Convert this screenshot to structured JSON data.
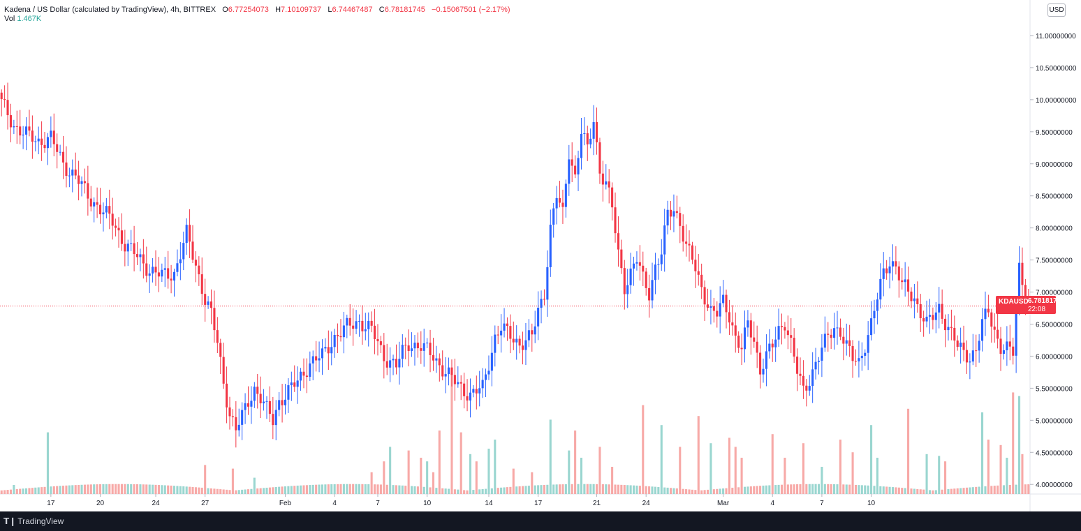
{
  "legend": {
    "title": "Kadena / US Dollar (calculated by TradingView), 4h, BITTREX",
    "o_label": "O",
    "o_value": "6.77254073",
    "h_label": "H",
    "h_value": "7.10109737",
    "l_label": "L",
    "l_value": "6.74467487",
    "c_label": "C",
    "c_value": "6.78181745",
    "change": "−0.15067501 (−2.17%)",
    "vol_label": "Vol",
    "vol_value": "1.467K"
  },
  "currency_button": "USD",
  "last_price": {
    "symbol": "KDAUSD",
    "price": "6.78181745",
    "countdown": "22:08"
  },
  "footer": {
    "brand": "TradingView",
    "logo_icon": "tradingview-logo-icon"
  },
  "colors": {
    "up": "#2962ff",
    "down": "#f23645",
    "vol_up": "#9ad6d0",
    "vol_down": "#f7a9a7",
    "grid": "#e0e3eb",
    "last_price": "#f23645"
  },
  "chart_data": {
    "type": "candlestick",
    "symbol": "KDAUSD",
    "timeframe": "4h",
    "ylim": [
      3.85,
      11.25
    ],
    "yticks": [
      "11.00000000",
      "10.50000000",
      "10.00000000",
      "9.50000000",
      "9.00000000",
      "8.50000000",
      "8.00000000",
      "7.50000000",
      "7.00000000",
      "6.50000000",
      "6.00000000",
      "5.50000000",
      "5.00000000",
      "4.50000000",
      "4.00000000"
    ],
    "ytick_values": [
      11.0,
      10.5,
      10.0,
      9.5,
      9.0,
      8.5,
      8.0,
      7.5,
      7.0,
      6.5,
      6.0,
      5.5,
      5.0,
      4.5,
      4.0
    ],
    "xticks": [
      "17",
      "20",
      "24",
      "27",
      "Feb",
      "4",
      "7",
      "10",
      "14",
      "17",
      "21",
      "24",
      "Mar",
      "4",
      "7",
      "10"
    ],
    "xtick_index": [
      16,
      32,
      50,
      66,
      92,
      108,
      122,
      138,
      158,
      174,
      193,
      209,
      234,
      250,
      266,
      282
    ],
    "last_price": 6.78181745,
    "close_path": [
      [
        0,
        9.95
      ],
      [
        4,
        9.6
      ],
      [
        8,
        9.45
      ],
      [
        12,
        9.35
      ],
      [
        16,
        9.4
      ],
      [
        20,
        9.0
      ],
      [
        24,
        8.8
      ],
      [
        28,
        8.5
      ],
      [
        32,
        8.3
      ],
      [
        36,
        8.1
      ],
      [
        40,
        7.75
      ],
      [
        44,
        7.55
      ],
      [
        48,
        7.35
      ],
      [
        52,
        7.25
      ],
      [
        56,
        7.3
      ],
      [
        60,
        7.9
      ],
      [
        64,
        7.25
      ],
      [
        66,
        6.9
      ],
      [
        68,
        6.65
      ],
      [
        70,
        6.2
      ],
      [
        72,
        5.6
      ],
      [
        74,
        5.1
      ],
      [
        76,
        4.85
      ],
      [
        78,
        5.05
      ],
      [
        80,
        5.3
      ],
      [
        82,
        5.5
      ],
      [
        84,
        5.35
      ],
      [
        86,
        5.15
      ],
      [
        88,
        5.0
      ],
      [
        90,
        5.3
      ],
      [
        92,
        5.4
      ],
      [
        94,
        5.5
      ],
      [
        96,
        5.6
      ],
      [
        98,
        5.75
      ],
      [
        100,
        5.9
      ],
      [
        104,
        6.0
      ],
      [
        108,
        6.3
      ],
      [
        112,
        6.45
      ],
      [
        116,
        6.55
      ],
      [
        120,
        6.4
      ],
      [
        124,
        6.0
      ],
      [
        128,
        5.85
      ],
      [
        130,
        6.05
      ],
      [
        132,
        6.2
      ],
      [
        136,
        6.15
      ],
      [
        140,
        6.0
      ],
      [
        144,
        5.75
      ],
      [
        148,
        5.55
      ],
      [
        152,
        5.4
      ],
      [
        156,
        5.5
      ],
      [
        158,
        5.9
      ],
      [
        160,
        6.3
      ],
      [
        162,
        6.45
      ],
      [
        164,
        6.35
      ],
      [
        168,
        6.2
      ],
      [
        172,
        6.3
      ],
      [
        174,
        6.7
      ],
      [
        176,
        7.0
      ],
      [
        177,
        7.5
      ],
      [
        178,
        8.0
      ],
      [
        180,
        8.5
      ],
      [
        182,
        8.2
      ],
      [
        184,
        9.2
      ],
      [
        186,
        8.8
      ],
      [
        188,
        9.5
      ],
      [
        190,
        9.2
      ],
      [
        192,
        9.7
      ],
      [
        194,
        8.9
      ],
      [
        196,
        8.7
      ],
      [
        198,
        8.3
      ],
      [
        200,
        7.6
      ],
      [
        202,
        7.1
      ],
      [
        204,
        7.3
      ],
      [
        206,
        7.5
      ],
      [
        208,
        7.2
      ],
      [
        210,
        7.0
      ],
      [
        212,
        7.4
      ],
      [
        214,
        7.6
      ],
      [
        216,
        8.2
      ],
      [
        218,
        8.3
      ],
      [
        220,
        8.1
      ],
      [
        222,
        7.7
      ],
      [
        224,
        7.5
      ],
      [
        226,
        7.2
      ],
      [
        228,
        6.95
      ],
      [
        230,
        6.7
      ],
      [
        232,
        6.65
      ],
      [
        234,
        6.85
      ],
      [
        236,
        6.65
      ],
      [
        238,
        6.3
      ],
      [
        240,
        6.1
      ],
      [
        242,
        6.5
      ],
      [
        244,
        6.25
      ],
      [
        246,
        5.8
      ],
      [
        248,
        6.0
      ],
      [
        250,
        6.15
      ],
      [
        252,
        6.4
      ],
      [
        254,
        6.55
      ],
      [
        256,
        6.2
      ],
      [
        258,
        5.75
      ],
      [
        260,
        5.45
      ],
      [
        262,
        5.65
      ],
      [
        264,
        5.9
      ],
      [
        266,
        6.1
      ],
      [
        268,
        6.3
      ],
      [
        270,
        6.45
      ],
      [
        272,
        6.4
      ],
      [
        274,
        6.15
      ],
      [
        276,
        5.95
      ],
      [
        278,
        5.9
      ],
      [
        280,
        6.2
      ],
      [
        282,
        6.5
      ],
      [
        284,
        6.9
      ],
      [
        286,
        7.3
      ],
      [
        288,
        7.5
      ],
      [
        290,
        7.4
      ],
      [
        292,
        7.1
      ],
      [
        294,
        7.0
      ],
      [
        296,
        6.9
      ],
      [
        298,
        6.7
      ],
      [
        300,
        6.5
      ],
      [
        302,
        6.6
      ],
      [
        304,
        6.75
      ],
      [
        306,
        6.55
      ],
      [
        308,
        6.35
      ],
      [
        310,
        6.15
      ],
      [
        312,
        6.05
      ],
      [
        314,
        6.0
      ],
      [
        316,
        6.1
      ],
      [
        318,
        6.5
      ],
      [
        320,
        6.7
      ],
      [
        322,
        6.4
      ],
      [
        324,
        6.15
      ],
      [
        326,
        6.1
      ],
      [
        328,
        6.05
      ],
      [
        330,
        7.4
      ],
      [
        332,
        7.0
      ],
      [
        333,
        6.78
      ]
    ],
    "volume_spikes": [
      [
        4,
        0.5
      ],
      [
        15,
        3.4
      ],
      [
        66,
        1.6
      ],
      [
        75,
        1.4
      ],
      [
        82,
        0.9
      ],
      [
        120,
        1.2
      ],
      [
        124,
        1.8
      ],
      [
        126,
        2.6
      ],
      [
        132,
        2.4
      ],
      [
        136,
        2.0
      ],
      [
        138,
        1.8
      ],
      [
        140,
        1.2
      ],
      [
        142,
        3.5
      ],
      [
        146,
        6.7
      ],
      [
        149,
        3.4
      ],
      [
        152,
        2.2
      ],
      [
        154,
        1.8
      ],
      [
        158,
        2.5
      ],
      [
        160,
        3.0
      ],
      [
        166,
        1.4
      ],
      [
        172,
        1.2
      ],
      [
        178,
        4.1
      ],
      [
        184,
        2.4
      ],
      [
        186,
        3.5
      ],
      [
        188,
        2.0
      ],
      [
        194,
        2.6
      ],
      [
        198,
        1.5
      ],
      [
        208,
        4.9
      ],
      [
        214,
        3.8
      ],
      [
        220,
        2.6
      ],
      [
        226,
        4.3
      ],
      [
        230,
        2.8
      ],
      [
        236,
        3.1
      ],
      [
        238,
        2.6
      ],
      [
        240,
        2.0
      ],
      [
        250,
        3.3
      ],
      [
        254,
        2.0
      ],
      [
        260,
        2.8
      ],
      [
        266,
        1.5
      ],
      [
        272,
        3.0
      ],
      [
        276,
        2.3
      ],
      [
        282,
        3.8
      ],
      [
        284,
        2.0
      ],
      [
        294,
        4.7
      ],
      [
        300,
        2.2
      ],
      [
        304,
        2.1
      ],
      [
        306,
        1.8
      ],
      [
        318,
        4.5
      ],
      [
        320,
        3.0
      ],
      [
        324,
        2.7
      ],
      [
        326,
        2.0
      ],
      [
        328,
        5.6
      ],
      [
        330,
        5.4
      ],
      [
        331,
        2.2
      ]
    ]
  }
}
